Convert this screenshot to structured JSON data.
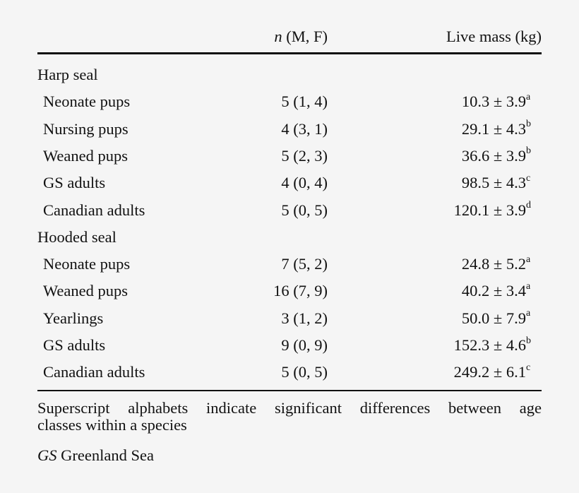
{
  "header": {
    "n_label_italic": "n",
    "n_label_rest": " (M, F)",
    "mass_label": "Live mass (kg)"
  },
  "groups": [
    {
      "name": "Harp seal",
      "rows": [
        {
          "label": "Neonate pups",
          "n": "5 (1, 4)",
          "mass": "10.3 ± 3.9",
          "sup": "a"
        },
        {
          "label": "Nursing pups",
          "n": "4 (3, 1)",
          "mass": "29.1 ± 4.3",
          "sup": "b"
        },
        {
          "label": "Weaned pups",
          "n": "5 (2, 3)",
          "mass": "36.6 ± 3.9",
          "sup": "b"
        },
        {
          "label": "GS adults",
          "n": "4 (0, 4)",
          "mass": "98.5 ± 4.3",
          "sup": "c"
        },
        {
          "label": "Canadian adults",
          "n": "5 (0, 5)",
          "mass": "120.1 ± 3.9",
          "sup": "d"
        }
      ]
    },
    {
      "name": "Hooded seal",
      "rows": [
        {
          "label": "Neonate pups",
          "n": "7 (5, 2)",
          "mass": "24.8 ± 5.2",
          "sup": "a"
        },
        {
          "label": "Weaned pups",
          "n": "16 (7, 9)",
          "mass": "40.2 ± 3.4",
          "sup": "a"
        },
        {
          "label": "Yearlings",
          "n": "3 (1, 2)",
          "mass": "50.0 ± 7.9",
          "sup": "a"
        },
        {
          "label": "GS adults",
          "n": "9 (0, 9)",
          "mass": "152.3 ± 4.6",
          "sup": "b"
        },
        {
          "label": "Canadian adults",
          "n": "5 (0, 5)",
          "mass": "249.2 ± 6.1",
          "sup": "c"
        }
      ]
    }
  ],
  "footnotes": {
    "line1": "Superscript alphabets indicate significant differences between age",
    "line2": "classes within a species",
    "abbr": "GS",
    "abbr_def": " Greenland Sea"
  }
}
